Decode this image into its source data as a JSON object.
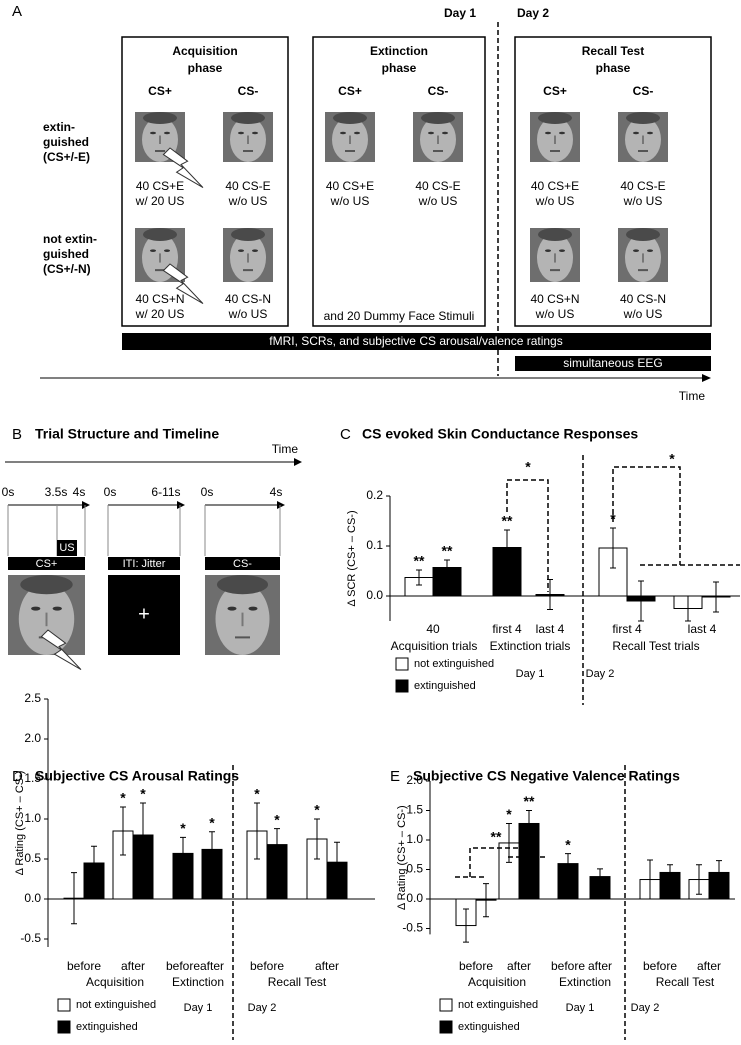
{
  "panel_a": {
    "label": "A",
    "days": [
      "Day 1",
      "Day 2"
    ],
    "phases": [
      {
        "title": [
          "Acquisition",
          "phase"
        ],
        "columns": [
          "CS+",
          "CS-"
        ],
        "captions": [
          [
            [
              "40 CS+E",
              "w/ 20 US"
            ],
            [
              "40 CS-E",
              "w/o US"
            ]
          ],
          [
            [
              "40 CS+N",
              "w/ 20 US"
            ],
            [
              "40 CS-N",
              "w/o US"
            ]
          ]
        ]
      },
      {
        "title": [
          "Extinction",
          "phase"
        ],
        "columns": [
          "CS+",
          "CS-"
        ],
        "captions": [
          [
            [
              "40 CS+E",
              "w/o US"
            ],
            [
              "40 CS-E",
              "w/o US"
            ]
          ]
        ],
        "note": "and 20 Dummy Face Stimuli"
      },
      {
        "title": [
          "Recall Test",
          "phase"
        ],
        "columns": [
          "CS+",
          "CS-"
        ],
        "captions": [
          [
            [
              "40 CS+E",
              "w/o US"
            ],
            [
              "40 CS-E",
              "w/o US"
            ]
          ],
          [
            [
              "40 CS+N",
              "w/o US"
            ],
            [
              "40 CS-N",
              "w/o US"
            ]
          ]
        ]
      }
    ],
    "rows": [
      [
        "extin-",
        "guished",
        "(CS+/-E)"
      ],
      [
        "not extin-",
        "guished",
        "(CS+/-N)"
      ]
    ],
    "bars": [
      "fMRI, SCRs, and subjective CS arousal/valence ratings",
      "simultaneous EEG"
    ],
    "time": "Time"
  },
  "panel_b": {
    "label": "B",
    "title": "Trial Structure and Timeline",
    "time": "Time",
    "segments": [
      {
        "ticks": [
          "0s",
          "3.5s",
          "4s"
        ],
        "label": "CS+",
        "us": "US"
      },
      {
        "ticks": [
          "0s",
          "6-11s"
        ],
        "label": "ITI: Jitter",
        "fixation": "+"
      },
      {
        "ticks": [
          "0s",
          "4s"
        ],
        "label": "CS-"
      }
    ]
  },
  "chart_data": [
    {
      "type": "bar",
      "panel": "C",
      "title": "CS evoked Skin Conductance Responses",
      "ylabel": "Δ SCR  (CS+ – CS-)",
      "categories": [
        "40",
        "first 4",
        "last 4",
        "first 4",
        "last 4"
      ],
      "groups": [
        "Acquisition trials",
        "Extinction trials",
        "Recall Test trials"
      ],
      "series": [
        {
          "name": "not extinguished",
          "color": "#ffffff",
          "values": [
            0.037,
            null,
            null,
            0.096,
            -0.025
          ],
          "errors": [
            0.015,
            null,
            null,
            0.04,
            0.025
          ],
          "stars": [
            "**",
            null,
            null,
            "*",
            null
          ]
        },
        {
          "name": "extinguished",
          "color": "#000000",
          "values": [
            0.057,
            0.097,
            0.003,
            -0.01,
            -0.002
          ],
          "errors": [
            0.015,
            0.035,
            0.03,
            0.04,
            0.03
          ],
          "stars": [
            "**",
            "**",
            null,
            null,
            null
          ]
        }
      ],
      "comparisons": [
        "*",
        "*"
      ],
      "day_labels": [
        "Day 1",
        "Day 2"
      ],
      "ylim": [
        -0.05,
        0.2
      ],
      "yticks": [
        {
          "value": 0,
          "label": "0.0"
        },
        {
          "value": 0.1,
          "label": "0.1"
        },
        {
          "value": 0.2,
          "label": "0.2"
        }
      ]
    },
    {
      "type": "bar",
      "panel": "D",
      "title": "Subjective CS Arousal Ratings",
      "ylabel": "Δ Rating  (CS+ – CS-)",
      "categories": [
        "before",
        "after",
        "before",
        "after",
        "before",
        "after"
      ],
      "groups": [
        "Acquisition",
        "Extinction",
        "Recall Test"
      ],
      "series": [
        {
          "name": "not extinguished",
          "color": "#ffffff",
          "values": [
            0.01,
            0.85,
            null,
            null,
            0.85,
            0.75
          ],
          "errors": [
            0.32,
            0.3,
            null,
            null,
            0.35,
            0.25
          ],
          "stars": [
            null,
            "*",
            null,
            null,
            "*",
            "*"
          ]
        },
        {
          "name": "extinguished",
          "color": "#000000",
          "values": [
            0.45,
            0.8,
            0.57,
            0.62,
            0.68,
            0.46
          ],
          "errors": [
            0.21,
            0.4,
            0.2,
            0.22,
            0.2,
            0.25
          ],
          "stars": [
            null,
            "*",
            "*",
            "*",
            "*",
            null
          ]
        }
      ],
      "comparisons": [],
      "day_labels": [
        "Day 1",
        "Day 2"
      ],
      "ylim": [
        -0.6,
        2.5
      ],
      "yticks": [
        -0.5,
        {
          "value": 0,
          "label": "0.0"
        },
        0.5,
        {
          "value": 1,
          "label": "1.0"
        },
        1.5,
        {
          "value": 2,
          "label": "2.0"
        },
        2.5
      ]
    },
    {
      "type": "bar",
      "panel": "E",
      "title": "Subjective CS Negative Valence Ratings",
      "ylabel": "Δ Rating  (CS+ – CS-)",
      "categories": [
        "before",
        "after",
        "before",
        "after",
        "before",
        "after"
      ],
      "groups": [
        "Acquisition",
        "Extinction",
        "Recall Test"
      ],
      "series": [
        {
          "name": "not extinguished",
          "color": "#ffffff",
          "values": [
            -0.45,
            0.95,
            null,
            null,
            0.33,
            0.33
          ],
          "errors": [
            0.28,
            0.33,
            null,
            null,
            0.33,
            0.25
          ],
          "stars": [
            null,
            "*",
            null,
            null,
            null,
            null
          ]
        },
        {
          "name": "extinguished",
          "color": "#000000",
          "values": [
            -0.02,
            1.28,
            0.6,
            0.38,
            0.45,
            0.45
          ],
          "errors": [
            0.28,
            0.22,
            0.17,
            0.13,
            0.13,
            0.2
          ],
          "stars": [
            null,
            "**",
            "*",
            null,
            null,
            null
          ]
        }
      ],
      "comparisons": [
        "**"
      ],
      "day_labels": [
        "Day 1",
        "Day 2"
      ],
      "ylim": [
        -0.6,
        2.0
      ],
      "yticks": [
        -0.5,
        {
          "value": 0,
          "label": "0.0"
        },
        0.5,
        {
          "value": 1,
          "label": "1.0"
        },
        1.5,
        {
          "value": 2,
          "label": "2.0"
        }
      ]
    }
  ]
}
